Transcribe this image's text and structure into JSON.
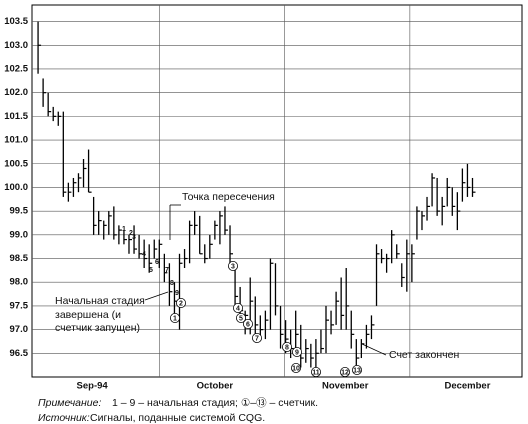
{
  "chart_data": {
    "type": "ohlc",
    "color": "#000000",
    "ylim": [
      96.0,
      103.85
    ],
    "yticks": [
      96.5,
      {
        "value": 97,
        "label": "97.0"
      },
      97.5,
      {
        "value": 98,
        "label": "98.0"
      },
      98.5,
      {
        "value": 99,
        "label": "99.0"
      },
      99.5,
      {
        "value": 100,
        "label": "100.0"
      },
      100.5,
      {
        "value": 101,
        "label": "101.0"
      },
      101.5,
      {
        "value": 102,
        "label": "102.0"
      },
      102.5,
      {
        "value": 103,
        "label": "103.0"
      },
      103.5
    ],
    "xlim": [
      -1.2,
      95.8
    ],
    "xgrid": [
      24,
      48.8,
      73.6
    ],
    "xticks": [
      {
        "value": 10.7,
        "label": "Sep-94"
      },
      {
        "value": 35,
        "label": "October"
      },
      {
        "value": 60.8,
        "label": "November"
      },
      {
        "value": 85,
        "label": "December"
      }
    ],
    "grid": true,
    "high": [
      103.5,
      102.3,
      102.0,
      101.7,
      101.6,
      101.6,
      100.1,
      100.2,
      100.3,
      100.6,
      100.8,
      99.8,
      99.5,
      99.3,
      99.5,
      99.6,
      99.2,
      99.1,
      99.0,
      99.2,
      99.0,
      98.9,
      98.8,
      98.9,
      98.9,
      98.6,
      98.4,
      98.0,
      98.6,
      98.7,
      99.3,
      99.5,
      99.4,
      98.8,
      99.0,
      99.3,
      99.5,
      99.6,
      99.2,
      98.4,
      97.9,
      97.4,
      98.1,
      97.7,
      97.3,
      97.4,
      98.5,
      98.4,
      97.5,
      97.2,
      97.0,
      97.4,
      97.1,
      96.8,
      96.7,
      96.8,
      97.0,
      97.5,
      97.4,
      97.8,
      98.1,
      98.3,
      97.4,
      96.8,
      96.8,
      97.1,
      97.3,
      98.8,
      98.7,
      98.6,
      99.1,
      98.8,
      98.4,
      98.9,
      98.8,
      99.6,
      99.5,
      99.8,
      100.3,
      100.2,
      99.8,
      100.2,
      100.0,
      99.9,
      100.4,
      100.5,
      100.2
    ],
    "low": [
      102.4,
      101.7,
      101.5,
      101.4,
      101.3,
      99.8,
      99.7,
      99.8,
      99.9,
      100.0,
      99.9,
      99.0,
      99.0,
      98.9,
      99.0,
      98.9,
      98.8,
      98.8,
      98.6,
      98.6,
      98.5,
      98.3,
      98.2,
      98.5,
      98.3,
      98.0,
      97.5,
      97.3,
      97.0,
      98.3,
      98.4,
      99.0,
      98.6,
      98.4,
      98.5,
      98.9,
      98.8,
      99.0,
      98.3,
      97.5,
      97.2,
      96.9,
      96.9,
      96.9,
      96.8,
      96.8,
      97.0,
      97.3,
      96.6,
      96.5,
      96.4,
      96.5,
      96.2,
      96.3,
      96.2,
      96.0,
      96.5,
      96.5,
      96.9,
      97.1,
      97.0,
      97.0,
      96.6,
      96.2,
      96.4,
      96.6,
      96.8,
      97.5,
      98.4,
      98.2,
      98.4,
      98.5,
      97.9,
      97.8,
      98.0,
      98.9,
      99.1,
      99.3,
      99.6,
      99.4,
      99.2,
      99.6,
      99.4,
      99.1,
      99.7,
      99.8,
      99.8
    ],
    "close": [
      103.0,
      102.0,
      101.6,
      101.5,
      101.5,
      99.9,
      99.9,
      100.1,
      100.2,
      100.4,
      99.9,
      99.2,
      99.3,
      99.2,
      99.4,
      99.0,
      99.1,
      98.9,
      98.9,
      98.7,
      98.6,
      98.5,
      98.4,
      98.7,
      98.8,
      98.2,
      97.8,
      97.6,
      98.4,
      98.5,
      99.2,
      99.2,
      98.6,
      98.5,
      98.8,
      99.2,
      99.4,
      99.1,
      98.6,
      97.7,
      97.4,
      97.3,
      97.6,
      97.1,
      97.0,
      97.2,
      98.4,
      97.5,
      96.9,
      96.8,
      96.6,
      96.9,
      96.4,
      96.6,
      96.4,
      96.5,
      96.6,
      97.2,
      97.1,
      97.6,
      97.3,
      97.5,
      96.9,
      96.4,
      96.7,
      96.9,
      97.1,
      98.6,
      98.5,
      98.5,
      99.0,
      98.6,
      98.1,
      98.6,
      98.6,
      99.5,
      99.4,
      99.6,
      100.2,
      99.5,
      99.6,
      100.0,
      99.6,
      99.5,
      100.1,
      100.0,
      99.9
    ],
    "setup_labels": [
      "1",
      "2",
      "3",
      "4",
      "5",
      "6",
      "7",
      "8",
      "9"
    ],
    "count_labels": [
      "1",
      "2",
      "3",
      "4",
      "5",
      "6",
      "7",
      "8",
      "9",
      "10",
      "11",
      "12",
      "13"
    ],
    "annotations": [
      "Точка пересечения",
      "Начальная стадия",
      "завершена (и",
      "счетчик запущен)",
      "Счет закончен"
    ],
    "note_label": "Примечание:",
    "note_text": "1 – 9 – начальная стадия;  ①–⑬ – счетчик.",
    "source_label": "Источник:",
    "source_text": "Сигналы, поданные системой CQG."
  }
}
